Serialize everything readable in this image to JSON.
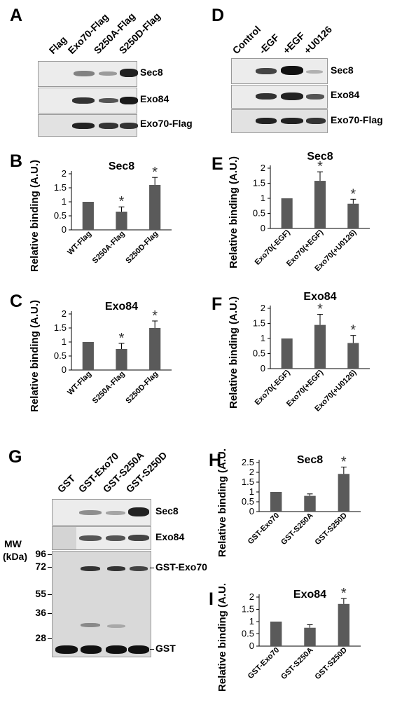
{
  "panels": {
    "A": {
      "letter": "A",
      "lanes": [
        "Flag",
        "Exo70-Flag",
        "S250A-Flag",
        "S250D-Flag"
      ],
      "blots": [
        "Sec8",
        "Exo84",
        "Exo70-Flag"
      ]
    },
    "D": {
      "letter": "D",
      "lanes": [
        "Control",
        "-EGF",
        "+EGF",
        "+U0126"
      ],
      "blots": [
        "Sec8",
        "Exo84",
        "Exo70-Flag"
      ]
    },
    "G": {
      "letter": "G",
      "lanes": [
        "GST",
        "GST-Exo70",
        "GST-S250A",
        "GST-S250D"
      ],
      "blots": [
        "Sec8",
        "Exo84"
      ],
      "mw_title_1": "MW",
      "mw_title_2": "(kDa)",
      "mw_markers": [
        "96",
        "72",
        "55",
        "36",
        "28"
      ],
      "gel_labels": [
        "GST-Exo70",
        "GST"
      ]
    }
  },
  "chart_data": [
    {
      "panel": "B",
      "type": "bar",
      "title": "Sec8",
      "ylabel": "Relative binding (A.U.)",
      "categories": [
        "WT-Flag",
        "S250A-Flag",
        "S250D-Flag"
      ],
      "values": [
        1.0,
        0.65,
        1.6
      ],
      "errors": [
        0.02,
        0.17,
        0.27
      ],
      "significant": [
        false,
        true,
        true
      ],
      "ylim": [
        0,
        2
      ],
      "yticks": [
        "0",
        "0.5",
        "1",
        "1.5",
        "2"
      ],
      "bar_color": "#5a5a5a"
    },
    {
      "panel": "C",
      "type": "bar",
      "title": "Exo84",
      "ylabel": "Relative binding (A.U.)",
      "categories": [
        "WT-Flag",
        "S250A-Flag",
        "S250D-Flag"
      ],
      "values": [
        1.0,
        0.75,
        1.5
      ],
      "errors": [
        0.02,
        0.2,
        0.25
      ],
      "significant": [
        false,
        true,
        true
      ],
      "ylim": [
        0,
        2
      ],
      "yticks": [
        "0",
        "0.5",
        "1",
        "1.5",
        "2"
      ],
      "bar_color": "#5a5a5a"
    },
    {
      "panel": "E",
      "type": "bar",
      "title": "Sec8",
      "ylabel": "Relative binding (A.U.)",
      "categories": [
        "Exo70(-EGF)",
        "Exo70(+EGF)",
        "Exo70(+U0126)"
      ],
      "values": [
        1.0,
        1.58,
        0.82
      ],
      "errors": [
        0.02,
        0.3,
        0.15
      ],
      "significant": [
        false,
        true,
        true
      ],
      "ylim": [
        0,
        2
      ],
      "yticks": [
        "0",
        "0.5",
        "1",
        "1.5",
        "2"
      ],
      "bar_color": "#5a5a5a"
    },
    {
      "panel": "F",
      "type": "bar",
      "title": "Exo84",
      "ylabel": "Relative binding (A.U.)",
      "categories": [
        "Exo70(-EGF)",
        "Exo70(+EGF)",
        "Exo70(+U0126)"
      ],
      "values": [
        1.0,
        1.45,
        0.85
      ],
      "errors": [
        0.02,
        0.35,
        0.25
      ],
      "significant": [
        false,
        true,
        true
      ],
      "ylim": [
        0,
        2
      ],
      "yticks": [
        "0",
        "0.5",
        "1",
        "1.5",
        "2"
      ],
      "bar_color": "#5a5a5a"
    },
    {
      "panel": "H",
      "type": "bar",
      "title": "Sec8",
      "ylabel": "Relative binding (A.U.)",
      "categories": [
        "GST-Exo70",
        "GST-S250A",
        "GST-S250D"
      ],
      "values": [
        1.0,
        0.8,
        1.92
      ],
      "errors": [
        0.02,
        0.1,
        0.35
      ],
      "significant": [
        false,
        false,
        true
      ],
      "ylim": [
        0,
        2.5
      ],
      "yticks": [
        "0",
        "0.5",
        "1",
        "1.5",
        "2",
        "2.5"
      ],
      "bar_color": "#5a5a5a"
    },
    {
      "panel": "I",
      "type": "bar",
      "title": "Exo84",
      "ylabel": "Relative binding (A.U.)",
      "categories": [
        "GST-Exo70",
        "GST-S250A",
        "GST-S250D"
      ],
      "values": [
        1.0,
        0.75,
        1.72
      ],
      "errors": [
        0.02,
        0.12,
        0.22
      ],
      "significant": [
        false,
        false,
        true
      ],
      "ylim": [
        0,
        2
      ],
      "yticks": [
        "0",
        "0.5",
        "1",
        "1.5",
        "2"
      ],
      "bar_color": "#5a5a5a"
    }
  ],
  "panel_letters": {
    "B": "B",
    "C": "C",
    "E": "E",
    "F": "F",
    "H": "H",
    "I": "I"
  },
  "sig_marker": "*"
}
